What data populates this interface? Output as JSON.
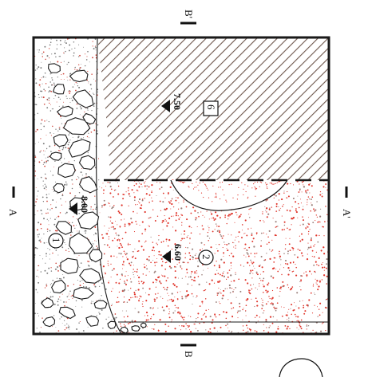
{
  "section_marks": {
    "a_left": "A",
    "a_right": "A'",
    "b_top": "B'",
    "b_bottom": "B"
  },
  "zones": {
    "zone_1": "1",
    "zone_2": "2",
    "zone_6": "6"
  },
  "elevations": {
    "e_800": "8.00",
    "e_750": "7.50",
    "e_660": "6.60"
  },
  "colors": {
    "frame": "#1a1a1a",
    "hatch": "#6e564c",
    "red_dots": "#e0352b",
    "grey_dots": "#7a7a7a",
    "stone_fill": "#ffffff"
  }
}
